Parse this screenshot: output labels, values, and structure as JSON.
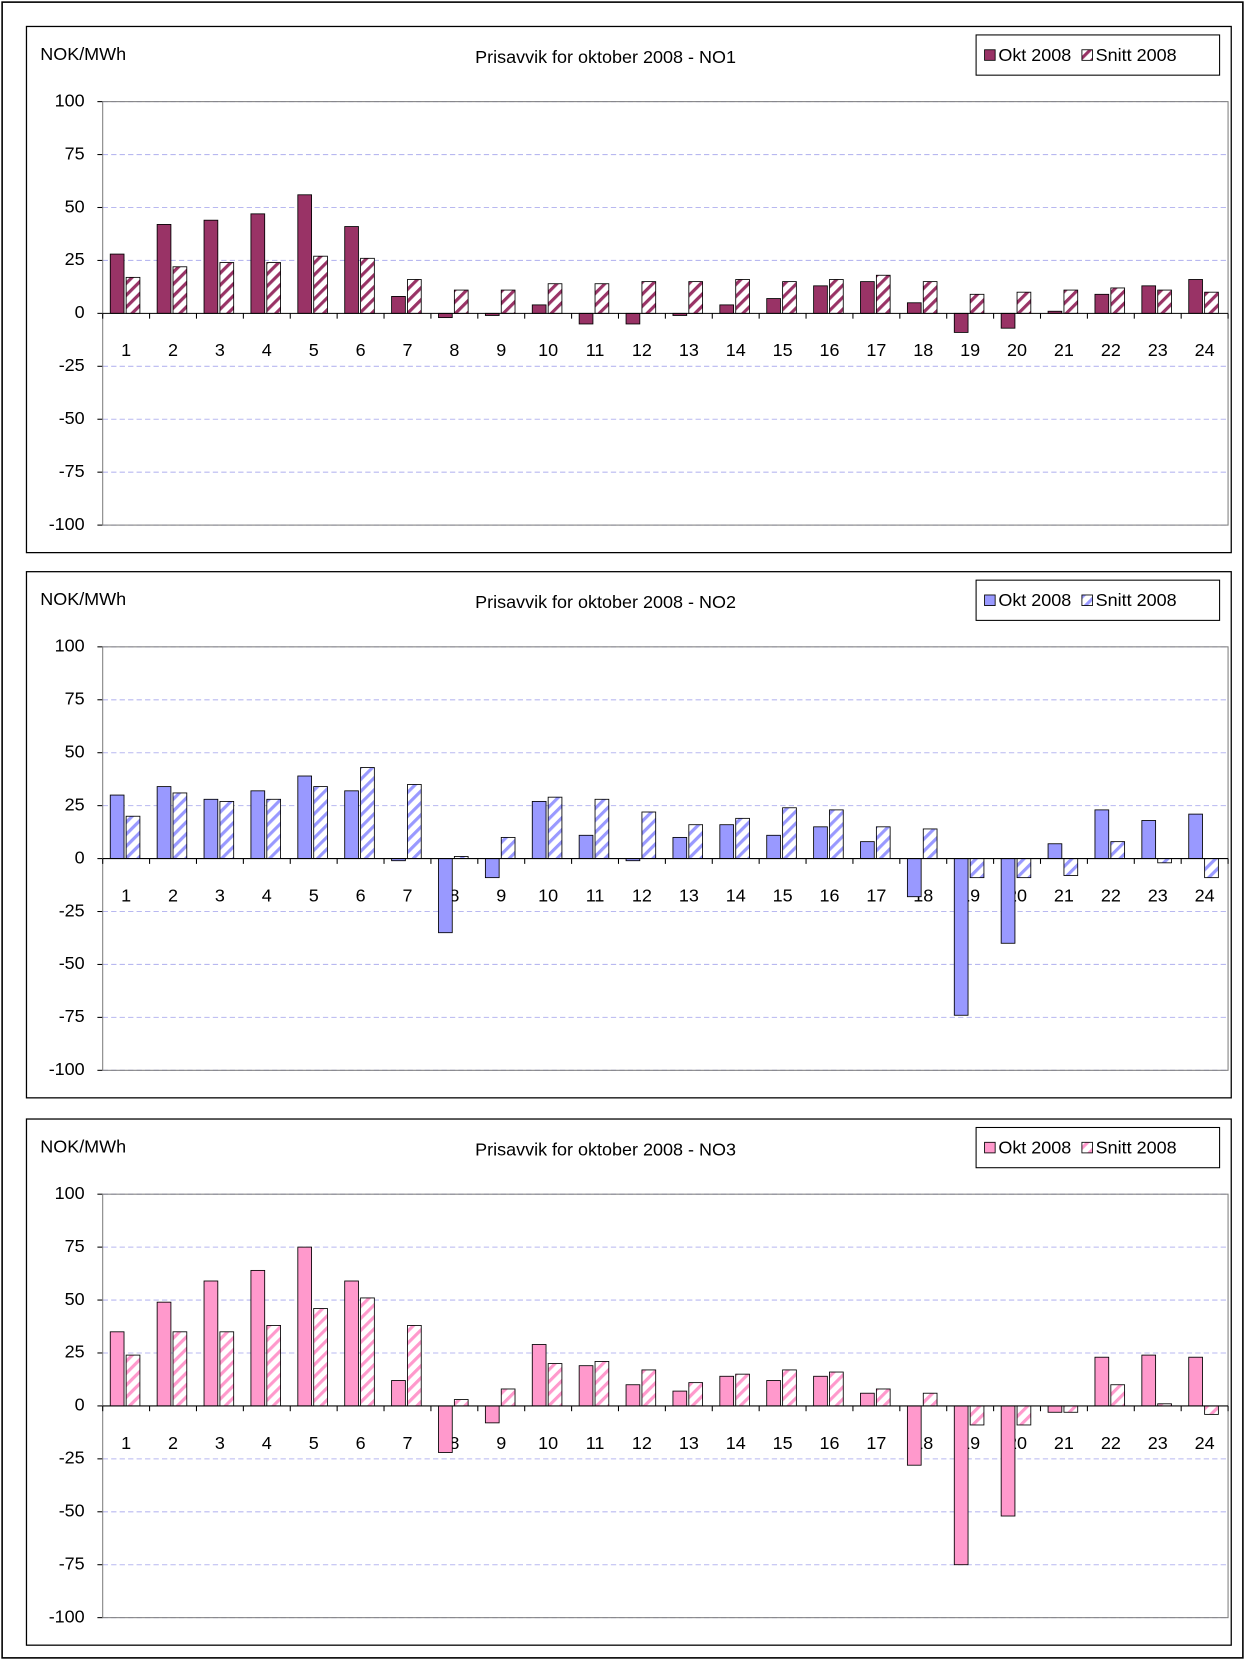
{
  "chart_data": [
    {
      "type": "bar",
      "title": "Prisavvik for oktober 2008 - NO1",
      "ylabel": "NOK/MWh",
      "categories": [
        "1",
        "2",
        "3",
        "4",
        "5",
        "6",
        "7",
        "8",
        "9",
        "10",
        "11",
        "12",
        "13",
        "14",
        "15",
        "16",
        "17",
        "18",
        "19",
        "20",
        "21",
        "22",
        "23",
        "24"
      ],
      "series": [
        {
          "name": "Okt 2008",
          "color": "#993366",
          "values": [
            28,
            42,
            44,
            47,
            56,
            41,
            8,
            -2,
            -1,
            4,
            -5,
            -5,
            -1,
            4,
            7,
            13,
            15,
            5,
            -9,
            -7,
            1,
            9,
            13,
            16
          ]
        },
        {
          "name": "Snitt 2008",
          "color": "#993366",
          "pattern": "hatch",
          "values": [
            17,
            22,
            24,
            24,
            27,
            26,
            16,
            11,
            11,
            14,
            14,
            15,
            15,
            16,
            15,
            16,
            18,
            15,
            9,
            10,
            11,
            12,
            11,
            10
          ]
        }
      ],
      "ylim": [
        -100,
        100
      ],
      "yticks": [
        -100,
        -75,
        -50,
        -25,
        0,
        25,
        50,
        75,
        100
      ],
      "grid": true,
      "legend": "top-right"
    },
    {
      "type": "bar",
      "title": "Prisavvik for oktober 2008 - NO2",
      "ylabel": "NOK/MWh",
      "categories": [
        "1",
        "2",
        "3",
        "4",
        "5",
        "6",
        "7",
        "8",
        "9",
        "10",
        "11",
        "12",
        "13",
        "14",
        "15",
        "16",
        "17",
        "18",
        "19",
        "20",
        "21",
        "22",
        "23",
        "24"
      ],
      "series": [
        {
          "name": "Okt 2008",
          "color": "#9999ff",
          "values": [
            30,
            34,
            28,
            32,
            39,
            32,
            -1,
            -35,
            -9,
            27,
            11,
            -1,
            10,
            16,
            11,
            15,
            8,
            -18,
            -74,
            -40,
            7,
            23,
            18,
            21
          ]
        },
        {
          "name": "Snitt 2008",
          "color": "#9999ff",
          "pattern": "hatch",
          "values": [
            20,
            31,
            27,
            28,
            34,
            43,
            35,
            1,
            10,
            29,
            28,
            22,
            16,
            19,
            24,
            23,
            15,
            14,
            -9,
            -9,
            -8,
            8,
            -2,
            -9
          ]
        }
      ],
      "ylim": [
        -100,
        100
      ],
      "yticks": [
        -100,
        -75,
        -50,
        -25,
        0,
        25,
        50,
        75,
        100
      ],
      "grid": true,
      "legend": "top-right"
    },
    {
      "type": "bar",
      "title": "Prisavvik for oktober 2008 - NO3",
      "ylabel": "NOK/MWh",
      "categories": [
        "1",
        "2",
        "3",
        "4",
        "5",
        "6",
        "7",
        "8",
        "9",
        "10",
        "11",
        "12",
        "13",
        "14",
        "15",
        "16",
        "17",
        "18",
        "19",
        "20",
        "21",
        "22",
        "23",
        "24"
      ],
      "series": [
        {
          "name": "Okt 2008",
          "color": "#ff99cc",
          "values": [
            35,
            49,
            59,
            64,
            75,
            59,
            12,
            -22,
            -8,
            29,
            19,
            10,
            7,
            14,
            12,
            14,
            6,
            -28,
            -75,
            -52,
            -3,
            23,
            24,
            23
          ]
        },
        {
          "name": "Snitt 2008",
          "color": "#ff99cc",
          "pattern": "hatch",
          "values": [
            24,
            35,
            35,
            38,
            46,
            51,
            38,
            3,
            8,
            20,
            21,
            17,
            11,
            15,
            17,
            16,
            8,
            6,
            -9,
            -9,
            -3,
            10,
            1,
            -4
          ]
        }
      ],
      "ylim": [
        -100,
        100
      ],
      "yticks": [
        -100,
        -75,
        -50,
        -25,
        0,
        25,
        50,
        75,
        100
      ],
      "grid": true,
      "legend": "top-right"
    }
  ]
}
